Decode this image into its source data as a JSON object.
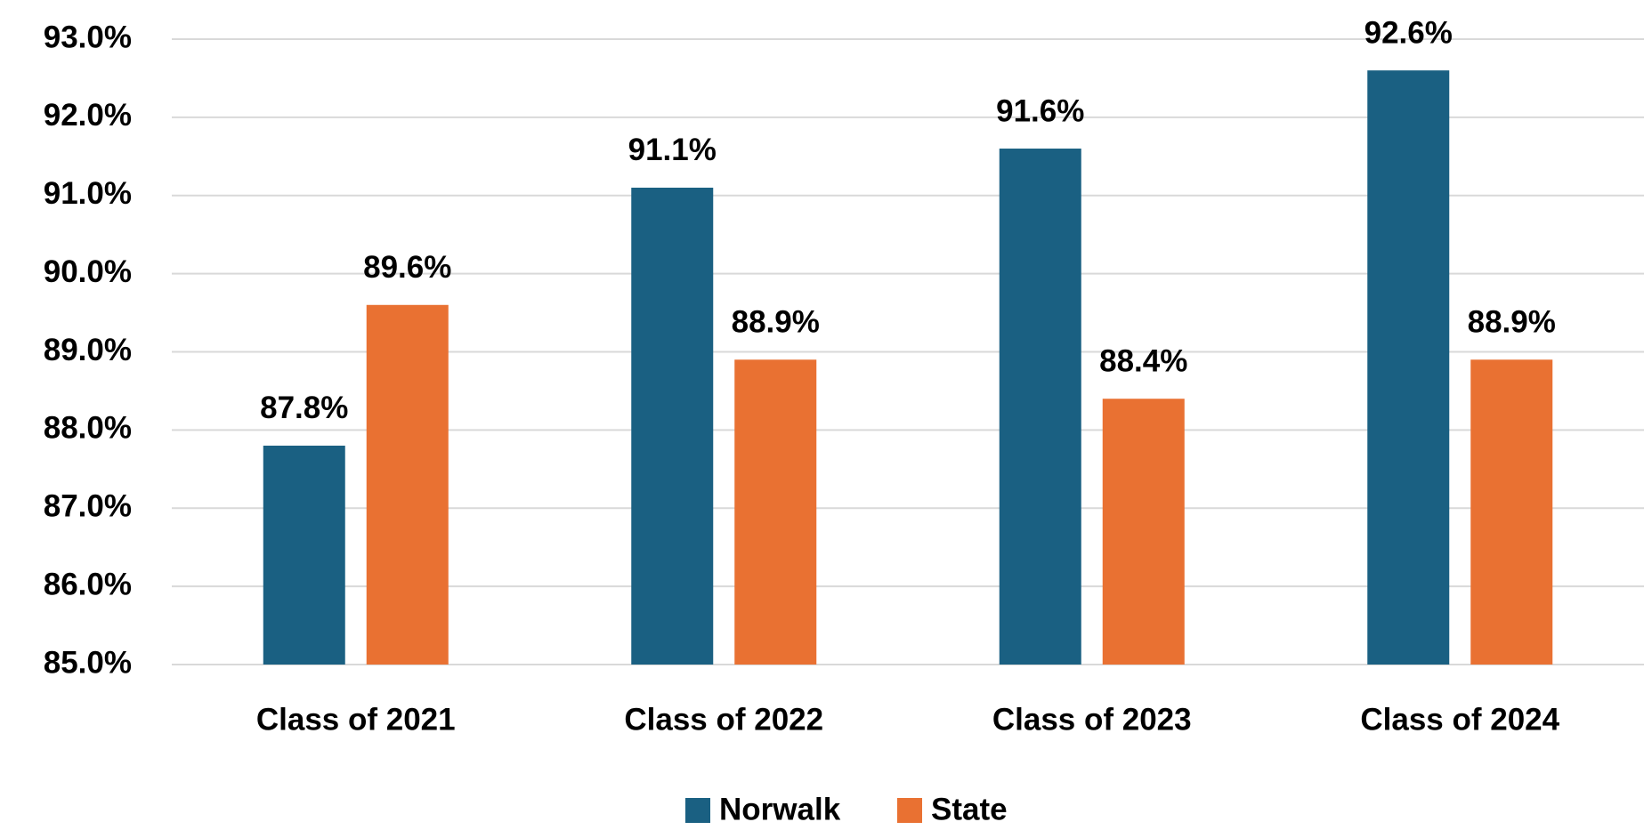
{
  "chart_data": {
    "type": "bar",
    "categories": [
      "Class of 2021",
      "Class of 2022",
      "Class of 2023",
      "Class of 2024"
    ],
    "series": [
      {
        "name": "Norwalk",
        "color": "#1a6082",
        "values": [
          87.8,
          91.1,
          91.6,
          92.6
        ],
        "value_labels": [
          "87.8%",
          "91.1%",
          "91.6%",
          "92.6%"
        ]
      },
      {
        "name": "State",
        "color": "#e97132",
        "values": [
          89.6,
          88.9,
          88.4,
          88.9
        ],
        "value_labels": [
          "89.6%",
          "88.9%",
          "88.4%",
          "88.9%"
        ]
      }
    ],
    "ylim": [
      85,
      93
    ],
    "yticks": [
      {
        "value": 85,
        "label": "85.0%"
      },
      {
        "value": 86,
        "label": "86.0%"
      },
      {
        "value": 87,
        "label": "87.0%"
      },
      {
        "value": 88,
        "label": "88.0%"
      },
      {
        "value": 89,
        "label": "89.0%"
      },
      {
        "value": 90,
        "label": "90.0%"
      },
      {
        "value": 91,
        "label": "91.0%"
      },
      {
        "value": 92,
        "label": "92.0%"
      },
      {
        "value": 93,
        "label": "93.0%"
      }
    ],
    "grid": true,
    "legend": "bottom"
  }
}
